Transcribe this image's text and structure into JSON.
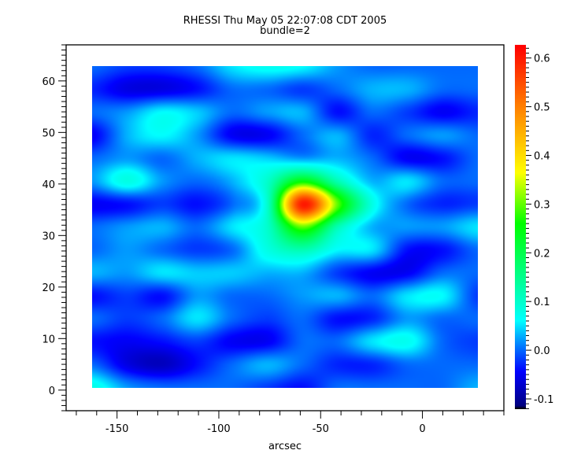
{
  "chart_data": {
    "type": "heatmap",
    "title": "RHESSI Thu May 05 22:07:08 CDT 2005",
    "subtitle": "bundle=2",
    "xlabel": "arcsec",
    "ylabel": "",
    "xlim": [
      -175,
      40
    ],
    "ylim": [
      -4,
      67
    ],
    "x_ticks": [
      -150,
      -100,
      -50,
      0
    ],
    "y_ticks": [
      0,
      10,
      20,
      30,
      40,
      50,
      60
    ],
    "image_extent": {
      "x": [
        -162,
        27
      ],
      "y": [
        0,
        63
      ]
    },
    "x": [
      -162,
      -145,
      -128,
      -111,
      -94,
      -77,
      -60,
      -43,
      -26,
      -9,
      8,
      25
    ],
    "y": [
      63,
      58.5,
      54,
      49.5,
      45,
      40.5,
      36,
      31.5,
      27,
      22.5,
      18,
      13.5,
      9,
      4.5,
      0
    ],
    "z": [
      [
        0.0,
        -0.02,
        -0.02,
        0.0,
        0.05,
        0.07,
        0.06,
        0.02,
        0.0,
        0.0,
        0.0,
        0.0
      ],
      [
        -0.03,
        -0.06,
        -0.06,
        -0.04,
        0.0,
        0.0,
        -0.02,
        0.0,
        0.03,
        0.03,
        0.0,
        0.0
      ],
      [
        0.0,
        0.02,
        0.06,
        0.04,
        0.0,
        0.02,
        0.03,
        -0.04,
        0.0,
        -0.02,
        -0.05,
        -0.03
      ],
      [
        -0.05,
        0.03,
        0.06,
        0.02,
        -0.05,
        -0.05,
        0.0,
        0.03,
        -0.03,
        0.0,
        0.02,
        0.0
      ],
      [
        0.0,
        0.02,
        0.0,
        0.03,
        0.05,
        0.04,
        0.02,
        0.03,
        0.0,
        -0.05,
        -0.04,
        0.0
      ],
      [
        0.02,
        0.08,
        0.02,
        0.0,
        0.03,
        0.1,
        0.25,
        0.12,
        0.03,
        0.05,
        0.0,
        0.0
      ],
      [
        -0.05,
        -0.04,
        -0.02,
        -0.04,
        0.0,
        0.1,
        0.6,
        0.3,
        0.08,
        0.0,
        -0.03,
        -0.02
      ],
      [
        0.0,
        0.02,
        0.03,
        0.0,
        0.05,
        0.1,
        0.3,
        0.12,
        0.03,
        0.02,
        0.02,
        0.05
      ],
      [
        0.0,
        0.02,
        0.0,
        -0.02,
        0.0,
        0.08,
        0.12,
        0.06,
        0.05,
        -0.04,
        -0.04,
        0.0
      ],
      [
        0.03,
        0.02,
        0.05,
        0.04,
        0.04,
        0.03,
        0.03,
        -0.02,
        -0.05,
        -0.05,
        0.0,
        0.0
      ],
      [
        -0.04,
        -0.02,
        -0.04,
        0.02,
        0.0,
        0.0,
        0.02,
        0.03,
        0.0,
        0.05,
        0.06,
        -0.02
      ],
      [
        0.0,
        -0.02,
        0.0,
        0.05,
        0.0,
        -0.02,
        0.0,
        -0.04,
        -0.03,
        0.02,
        0.0,
        0.0
      ],
      [
        -0.04,
        -0.05,
        -0.04,
        -0.02,
        -0.05,
        -0.05,
        0.0,
        0.0,
        0.05,
        0.07,
        0.0,
        -0.02
      ],
      [
        0.0,
        -0.06,
        -0.08,
        -0.04,
        0.0,
        0.03,
        0.0,
        -0.03,
        -0.03,
        0.0,
        0.0,
        0.0
      ],
      [
        0.08,
        0.02,
        0.0,
        0.0,
        0.0,
        -0.02,
        -0.04,
        0.0,
        0.0,
        0.0,
        0.0,
        0.03
      ]
    ],
    "colorbar": {
      "range": [
        -0.121,
        0.627
      ],
      "ticks": [
        -0.1,
        0.0,
        0.1,
        0.2,
        0.3,
        0.4,
        0.5,
        0.6
      ],
      "tick_labels": [
        "-0.1",
        "0.0",
        "0.1",
        "0.2",
        "0.3",
        "0.4",
        "0.5",
        "0.6"
      ],
      "colormap": [
        [
          -0.121,
          "#000000"
        ],
        [
          -0.115,
          "#000080"
        ],
        [
          -0.045,
          "#0000ff"
        ],
        [
          0.01,
          "#0080ff"
        ],
        [
          0.06,
          "#00ffff"
        ],
        [
          0.16,
          "#00ff80"
        ],
        [
          0.26,
          "#00ff00"
        ],
        [
          0.365,
          "#ffff00"
        ],
        [
          0.5,
          "#ff8000"
        ],
        [
          0.627,
          "#ff0000"
        ]
      ]
    },
    "grid": false,
    "legend": "none"
  }
}
